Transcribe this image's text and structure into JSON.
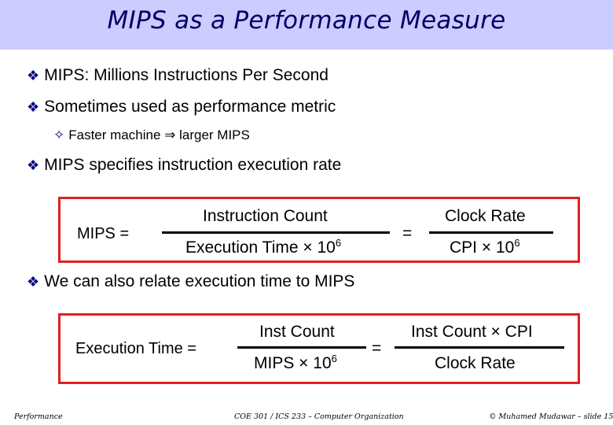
{
  "title": "MIPS as a Performance Measure",
  "bullets": {
    "b1": "MIPS: Millions Instructions Per Second",
    "b2": "Sometimes used as performance metric",
    "b2_sub": "Faster machine ⇒ larger MIPS",
    "b3": "MIPS specifies instruction execution rate",
    "b4": "We can also relate execution time to MIPS"
  },
  "formula1": {
    "lhs": "MIPS =",
    "num1": "Instruction Count",
    "den1": "Execution Time × 10",
    "den1_exp": "6",
    "eq": "=",
    "num2": "Clock Rate",
    "den2": "CPI × 10",
    "den2_exp": "6"
  },
  "formula2": {
    "lhs": "Execution Time =",
    "num1": "Inst Count",
    "den1": "MIPS × 10",
    "den1_exp": "6",
    "eq": "=",
    "num2": "Inst Count × CPI",
    "den2": "Clock Rate"
  },
  "footer": {
    "left": "Performance",
    "center": "COE 301 / ICS 233 – Computer Organization",
    "right": "© Muhamed Mudawar – slide 15"
  },
  "colors": {
    "title_bg": "#ccccff",
    "title_text": "#000066",
    "box_border": "#e02020",
    "bullet": "#000080"
  }
}
